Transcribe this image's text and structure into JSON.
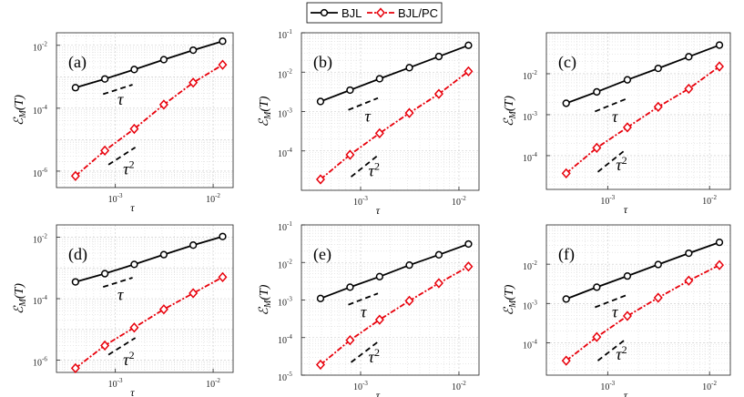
{
  "legend": {
    "entries": [
      {
        "label": "BJL",
        "color": "#000000",
        "marker": "circle",
        "dash": "solid"
      },
      {
        "label": "BJL/PC",
        "color": "#e8000b",
        "marker": "diamond",
        "dash": "dash-dot"
      }
    ]
  },
  "chart_data": [
    {
      "type": "line",
      "panel": "(a)",
      "xscale": "log",
      "yscale": "log",
      "xlabel": "τ",
      "ylabel": "ℰ_M(T)",
      "xlim": [
        0.00025,
        0.016
      ],
      "ylim": [
        3e-07,
        0.025
      ],
      "xticks": [
        {
          "value": 0.001,
          "label": "10",
          "exp": "-3"
        },
        {
          "value": 0.01,
          "label": "10",
          "exp": "-2"
        }
      ],
      "yticks": [
        {
          "value": 1e-06,
          "label": "10",
          "exp": "-6"
        },
        {
          "value": 0.0001,
          "label": "10",
          "exp": "-4"
        },
        {
          "value": 0.01,
          "label": "10",
          "exp": "-2"
        }
      ],
      "x": [
        0.000391,
        0.000781,
        0.00156,
        0.00313,
        0.00625,
        0.0125
      ],
      "series": [
        {
          "name": "BJL",
          "values": [
            0.00045,
            0.00085,
            0.0017,
            0.0035,
            0.007,
            0.0135
          ]
        },
        {
          "name": "BJL/PC",
          "values": [
            7e-07,
            4.5e-06,
            2.2e-05,
            0.00013,
            0.00065,
            0.0024
          ]
        }
      ],
      "reference_lines": [
        {
          "label": "τ",
          "exponent": 1,
          "x": [
            0.00075,
            0.0015
          ],
          "y": [
            0.00028,
            0.00056
          ],
          "label_at": [
            0.00105,
            0.00013
          ]
        },
        {
          "label": "τ",
          "exponent": 2,
          "label_sup": "2",
          "x": [
            0.00085,
            0.0016
          ],
          "y": [
            1.6e-06,
            5.7e-06
          ],
          "label_at": [
            0.0012,
            8e-07
          ]
        }
      ]
    },
    {
      "type": "line",
      "panel": "(b)",
      "xscale": "log",
      "yscale": "log",
      "xlabel": "τ",
      "ylabel": "ℰ_M(T)",
      "xlim": [
        0.00025,
        0.016
      ],
      "ylim": [
        1e-05,
        0.1
      ],
      "xticks": [
        {
          "value": 0.001,
          "label": "10",
          "exp": "-3"
        },
        {
          "value": 0.01,
          "label": "10",
          "exp": "-2"
        }
      ],
      "yticks": [
        {
          "value": 0.0001,
          "label": "10",
          "exp": "-4"
        },
        {
          "value": 0.001,
          "label": "10",
          "exp": "-3"
        },
        {
          "value": 0.01,
          "label": "10",
          "exp": "-2"
        },
        {
          "value": 0.1,
          "label": "10",
          "exp": "-1"
        }
      ],
      "x": [
        0.000391,
        0.000781,
        0.00156,
        0.00313,
        0.00625,
        0.0125
      ],
      "series": [
        {
          "name": "BJL",
          "values": [
            0.0018,
            0.0035,
            0.0068,
            0.013,
            0.025,
            0.048
          ]
        },
        {
          "name": "BJL/PC",
          "values": [
            1.9e-05,
            8e-05,
            0.00028,
            0.00092,
            0.0028,
            0.0105
          ]
        }
      ],
      "reference_lines": [
        {
          "label": "τ",
          "exponent": 1,
          "x": [
            0.00075,
            0.0015
          ],
          "y": [
            0.0011,
            0.0022
          ],
          "label_at": [
            0.0011,
            0.00055
          ]
        },
        {
          "label": "τ",
          "exponent": 2,
          "label_sup": "2",
          "x": [
            0.0008,
            0.0015
          ],
          "y": [
            2.2e-05,
            7.7e-05
          ],
          "label_at": [
            0.0012,
            2.3e-05
          ]
        }
      ]
    },
    {
      "type": "line",
      "panel": "(c)",
      "xscale": "log",
      "yscale": "log",
      "xlabel": "τ",
      "ylabel": "ℰ_M(T)",
      "xlim": [
        0.00025,
        0.016
      ],
      "ylim": [
        1.5e-05,
        0.1
      ],
      "xticks": [
        {
          "value": 0.001,
          "label": "10",
          "exp": "-3"
        },
        {
          "value": 0.01,
          "label": "10",
          "exp": "-2"
        }
      ],
      "yticks": [
        {
          "value": 0.0001,
          "label": "10",
          "exp": "-4"
        },
        {
          "value": 0.001,
          "label": "10",
          "exp": "-3"
        },
        {
          "value": 0.01,
          "label": "10",
          "exp": "-2"
        }
      ],
      "x": [
        0.000391,
        0.000781,
        0.00156,
        0.00313,
        0.00625,
        0.0125
      ],
      "series": [
        {
          "name": "BJL",
          "values": [
            0.0019,
            0.0036,
            0.0071,
            0.0135,
            0.026,
            0.05
          ]
        },
        {
          "name": "BJL/PC",
          "values": [
            3.7e-05,
            0.000155,
            0.00049,
            0.00155,
            0.0043,
            0.015
          ]
        }
      ],
      "reference_lines": [
        {
          "label": "τ",
          "exponent": 1,
          "x": [
            0.00075,
            0.0015
          ],
          "y": [
            0.0012,
            0.0024
          ],
          "label_at": [
            0.0011,
            0.00066
          ]
        },
        {
          "label": "τ",
          "exponent": 2,
          "label_sup": "2",
          "x": [
            0.0008,
            0.0015
          ],
          "y": [
            4e-05,
            0.00014
          ],
          "label_at": [
            0.0012,
            4.4e-05
          ]
        }
      ]
    },
    {
      "type": "line",
      "panel": "(d)",
      "xscale": "log",
      "yscale": "log",
      "xlabel": "τ",
      "ylabel": "ℰ_M(T)",
      "xlim": [
        0.00025,
        0.016
      ],
      "ylim": [
        4e-07,
        0.025
      ],
      "xticks": [
        {
          "value": 0.001,
          "label": "10",
          "exp": "-3"
        },
        {
          "value": 0.01,
          "label": "10",
          "exp": "-2"
        }
      ],
      "yticks": [
        {
          "value": 1e-06,
          "label": "10",
          "exp": "-6"
        },
        {
          "value": 0.0001,
          "label": "10",
          "exp": "-4"
        },
        {
          "value": 0.01,
          "label": "10",
          "exp": "-2"
        }
      ],
      "x": [
        0.000391,
        0.000781,
        0.00156,
        0.00313,
        0.00625,
        0.0125
      ],
      "series": [
        {
          "name": "BJL",
          "values": [
            0.00035,
            0.00065,
            0.0013,
            0.0027,
            0.0055,
            0.0105
          ]
        },
        {
          "name": "BJL/PC",
          "values": [
            5.5e-07,
            3e-06,
            1.15e-05,
            4.5e-05,
            0.00015,
            0.0005
          ]
        }
      ],
      "reference_lines": [
        {
          "label": "τ",
          "exponent": 1,
          "x": [
            0.00075,
            0.0015
          ],
          "y": [
            0.00024,
            0.00048
          ],
          "label_at": [
            0.00105,
            9e-05
          ]
        },
        {
          "label": "τ",
          "exponent": 2,
          "label_sup": "2",
          "x": [
            0.00085,
            0.0016
          ],
          "y": [
            1.5e-06,
            5.3e-06
          ],
          "label_at": [
            0.0012,
            7e-07
          ]
        }
      ]
    },
    {
      "type": "line",
      "panel": "(e)",
      "xscale": "log",
      "yscale": "log",
      "xlabel": "τ",
      "ylabel": "ℰ_M(T)",
      "xlim": [
        0.00025,
        0.016
      ],
      "ylim": [
        1e-05,
        0.1
      ],
      "xticks": [
        {
          "value": 0.001,
          "label": "10",
          "exp": "-3"
        },
        {
          "value": 0.01,
          "label": "10",
          "exp": "-2"
        }
      ],
      "yticks": [
        {
          "value": 1e-05,
          "label": "10",
          "exp": "-5"
        },
        {
          "value": 0.0001,
          "label": "10",
          "exp": "-4"
        },
        {
          "value": 0.001,
          "label": "10",
          "exp": "-3"
        },
        {
          "value": 0.01,
          "label": "10",
          "exp": "-2"
        },
        {
          "value": 0.1,
          "label": "10",
          "exp": "-1"
        }
      ],
      "x": [
        0.000391,
        0.000781,
        0.00156,
        0.00313,
        0.00625,
        0.0125
      ],
      "series": [
        {
          "name": "BJL",
          "values": [
            0.0011,
            0.0022,
            0.0042,
            0.0085,
            0.016,
            0.031
          ]
        },
        {
          "name": "BJL/PC",
          "values": [
            1.9e-05,
            8.5e-05,
            0.0003,
            0.00095,
            0.0028,
            0.0078
          ]
        }
      ],
      "reference_lines": [
        {
          "label": "τ",
          "exponent": 1,
          "x": [
            0.00075,
            0.0015
          ],
          "y": [
            0.00075,
            0.0015
          ],
          "label_at": [
            0.001,
            0.00035
          ]
        },
        {
          "label": "τ",
          "exponent": 2,
          "label_sup": "2",
          "x": [
            0.0008,
            0.0015
          ],
          "y": [
            2.2e-05,
            7.7e-05
          ],
          "label_at": [
            0.0012,
            2.2e-05
          ]
        }
      ]
    },
    {
      "type": "line",
      "panel": "(f)",
      "xscale": "log",
      "yscale": "log",
      "xlabel": "τ",
      "ylabel": "ℰ_M(T)",
      "xlim": [
        0.00025,
        0.016
      ],
      "ylim": [
        1.5e-05,
        0.1
      ],
      "xticks": [
        {
          "value": 0.001,
          "label": "10",
          "exp": "-3"
        },
        {
          "value": 0.01,
          "label": "10",
          "exp": "-2"
        }
      ],
      "yticks": [
        {
          "value": 0.0001,
          "label": "10",
          "exp": "-4"
        },
        {
          "value": 0.001,
          "label": "10",
          "exp": "-3"
        },
        {
          "value": 0.01,
          "label": "10",
          "exp": "-2"
        }
      ],
      "x": [
        0.000391,
        0.000781,
        0.00156,
        0.00313,
        0.00625,
        0.0125
      ],
      "series": [
        {
          "name": "BJL",
          "values": [
            0.0013,
            0.0026,
            0.005,
            0.0098,
            0.019,
            0.036
          ]
        },
        {
          "name": "BJL/PC",
          "values": [
            3.5e-05,
            0.00014,
            0.00048,
            0.0014,
            0.0038,
            0.0095
          ]
        }
      ],
      "reference_lines": [
        {
          "label": "τ",
          "exponent": 1,
          "x": [
            0.00075,
            0.0015
          ],
          "y": [
            0.0008,
            0.0016
          ],
          "label_at": [
            0.0011,
            0.00045
          ]
        },
        {
          "label": "τ",
          "exponent": 2,
          "label_sup": "2",
          "x": [
            0.0008,
            0.0015
          ],
          "y": [
            3.5e-05,
            0.000123
          ],
          "label_at": [
            0.0012,
            3.7e-05
          ]
        }
      ]
    }
  ]
}
